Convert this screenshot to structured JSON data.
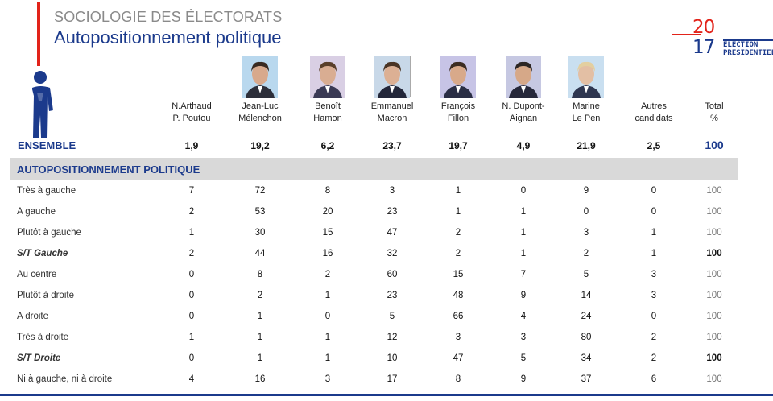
{
  "header": {
    "supertitle": "SOCIOLOGIE DES ÉLECTORATS",
    "title": "Autopositionnement politique"
  },
  "logo": {
    "digits_top": "20",
    "digits_bottom": "17",
    "line1": "ELECTION",
    "line2": "PRESIDENTIELLE"
  },
  "columns": [
    {
      "line1": "N.Arthaud",
      "line2": "P. Poutou"
    },
    {
      "line1": "Jean-Luc",
      "line2": "Mélenchon"
    },
    {
      "line1": "Benoît",
      "line2": "Hamon"
    },
    {
      "line1": "Emmanuel",
      "line2": "Macron"
    },
    {
      "line1": "François",
      "line2": "Fillon"
    },
    {
      "line1": "N. Dupont-",
      "line2": "Aignan"
    },
    {
      "line1": "Marine",
      "line2": "Le Pen"
    },
    {
      "line1": "Autres",
      "line2": "candidats"
    },
    {
      "line1": "Total",
      "line2": "%"
    }
  ],
  "ensemble": {
    "label": "ENSEMBLE",
    "values": [
      "1,9",
      "19,2",
      "6,2",
      "23,7",
      "19,7",
      "4,9",
      "21,9",
      "2,5",
      "100"
    ]
  },
  "section": {
    "label": "AUTOPOSITIONNEMENT POLITIQUE"
  },
  "rows": [
    {
      "label": "Très à gauche",
      "values": [
        "7",
        "72",
        "8",
        "3",
        "1",
        "0",
        "9",
        "0",
        "100"
      ]
    },
    {
      "label": "A gauche",
      "values": [
        "2",
        "53",
        "20",
        "23",
        "1",
        "1",
        "0",
        "0",
        "100"
      ]
    },
    {
      "label": "Plutôt à gauche",
      "values": [
        "1",
        "30",
        "15",
        "47",
        "2",
        "1",
        "3",
        "1",
        "100"
      ]
    },
    {
      "label": "S/T Gauche",
      "values": [
        "2",
        "44",
        "16",
        "32",
        "2",
        "1",
        "2",
        "1",
        "100"
      ]
    },
    {
      "label": "Au centre",
      "values": [
        "0",
        "8",
        "2",
        "60",
        "15",
        "7",
        "5",
        "3",
        "100"
      ]
    },
    {
      "label": "Plutôt à droite",
      "values": [
        "0",
        "2",
        "1",
        "23",
        "48",
        "9",
        "14",
        "3",
        "100"
      ]
    },
    {
      "label": "A droite",
      "values": [
        "0",
        "1",
        "0",
        "5",
        "66",
        "4",
        "24",
        "0",
        "100"
      ]
    },
    {
      "label": "Très à droite",
      "values": [
        "1",
        "1",
        "1",
        "12",
        "3",
        "3",
        "80",
        "2",
        "100"
      ]
    },
    {
      "label": "S/T Droite",
      "values": [
        "0",
        "1",
        "1",
        "10",
        "47",
        "5",
        "34",
        "2",
        "100"
      ]
    },
    {
      "label": "Ni à gauche, ni à droite",
      "values": [
        "4",
        "16",
        "3",
        "17",
        "8",
        "9",
        "37",
        "6",
        "100"
      ]
    }
  ],
  "subtotal_rows": [
    "S/T Gauche",
    "S/T Droite"
  ],
  "icons": {
    "person": "person-silhouette-icon"
  },
  "colors": {
    "accent_blue": "#1b3a8c",
    "accent_red": "#e2231a",
    "band_grey": "#d9d9d9"
  }
}
